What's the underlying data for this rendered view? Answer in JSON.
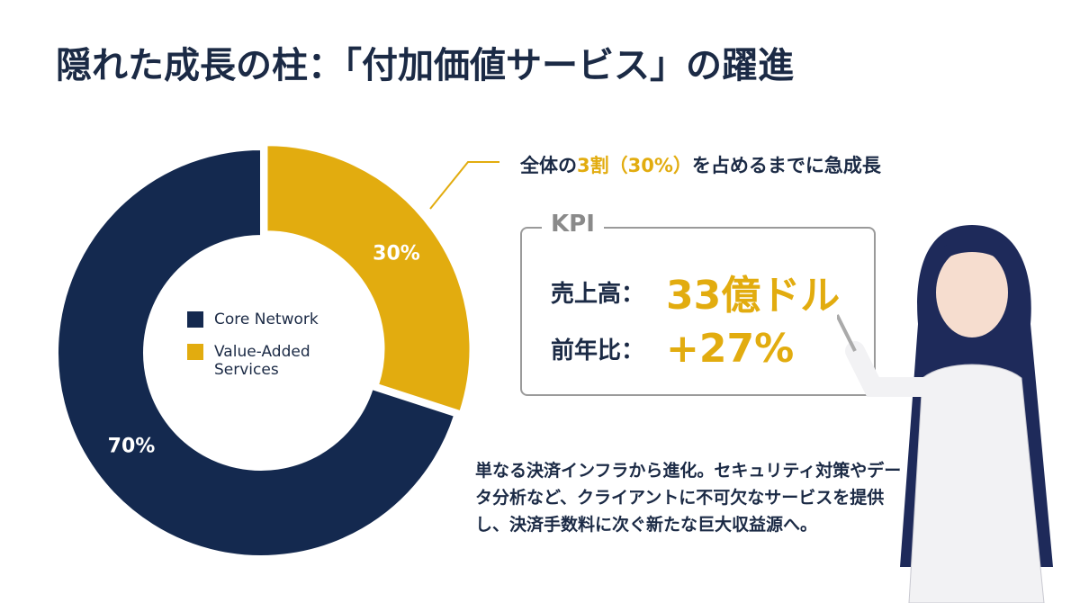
{
  "chart_data": {
    "type": "pie",
    "title": "隠れた成長の柱：「付加価値サービス」の躍進",
    "categories": [
      "Core Network",
      "Value-Added Services"
    ],
    "values": [
      70,
      30
    ],
    "value_labels": [
      "70%",
      "30%"
    ],
    "colors": [
      "#14294f",
      "#e2ac0f"
    ],
    "donut": true
  },
  "callout": {
    "parts": [
      "全体の",
      "3割（30%）",
      "を占めるまでに急成長"
    ]
  },
  "kpi": {
    "title": "KPI",
    "rows": [
      {
        "label": "売上高：",
        "value": "33億ドル"
      },
      {
        "label": "前年比：",
        "value": "+27%"
      }
    ]
  },
  "description": "単なる決済インフラから進化。セキュリティ対策やデータ分析など、クライアントに不可欠なサービスを提供し、決済手数料に次ぐ新たな巨大収益源へ。"
}
